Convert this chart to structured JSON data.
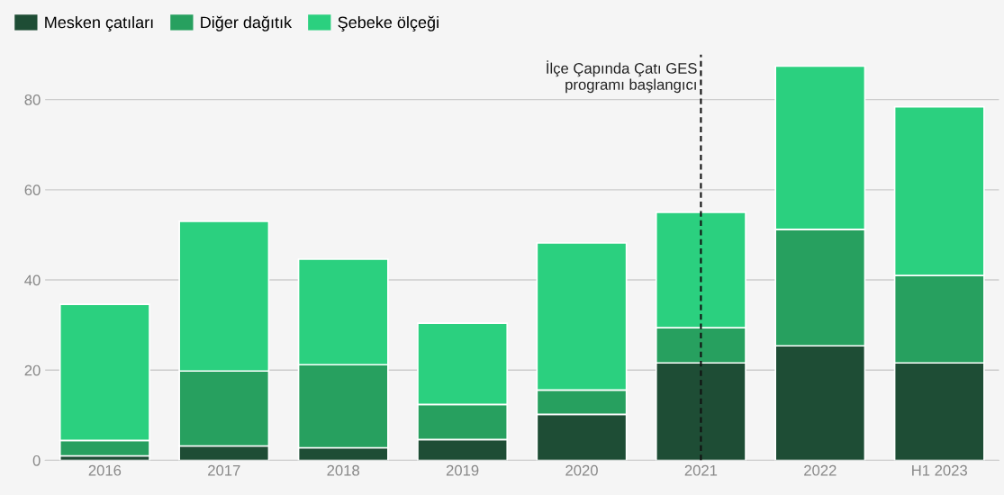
{
  "chart_data": {
    "type": "bar",
    "stacked": true,
    "categories": [
      "2016",
      "2017",
      "2018",
      "2019",
      "2020",
      "2021",
      "2022",
      "H1 2023"
    ],
    "series": [
      {
        "name": "Mesken çatıları",
        "color": "#1e4d35",
        "values": [
          1.0,
          3.2,
          2.8,
          4.6,
          10.2,
          21.6,
          25.4,
          21.6
        ]
      },
      {
        "name": "Diğer dağıtık",
        "color": "#27a05f",
        "values": [
          3.4,
          16.6,
          18.4,
          7.8,
          5.4,
          7.8,
          25.8,
          19.4
        ]
      },
      {
        "name": "Şebeke ölçeği",
        "color": "#2bd07f",
        "values": [
          30.2,
          33.2,
          23.4,
          18.0,
          32.6,
          25.6,
          36.2,
          37.4
        ]
      }
    ],
    "ylim": [
      0,
      90
    ],
    "yticks": [
      0,
      20,
      40,
      60,
      80
    ],
    "grid": "y",
    "legend": "top left",
    "ref_lines": [
      {
        "axis": "x",
        "value": "2021",
        "label": "İlçe Çapında Çatı GES\nprogramı başlangıcı",
        "color": "#111111",
        "line_style": "dashed"
      }
    ]
  }
}
